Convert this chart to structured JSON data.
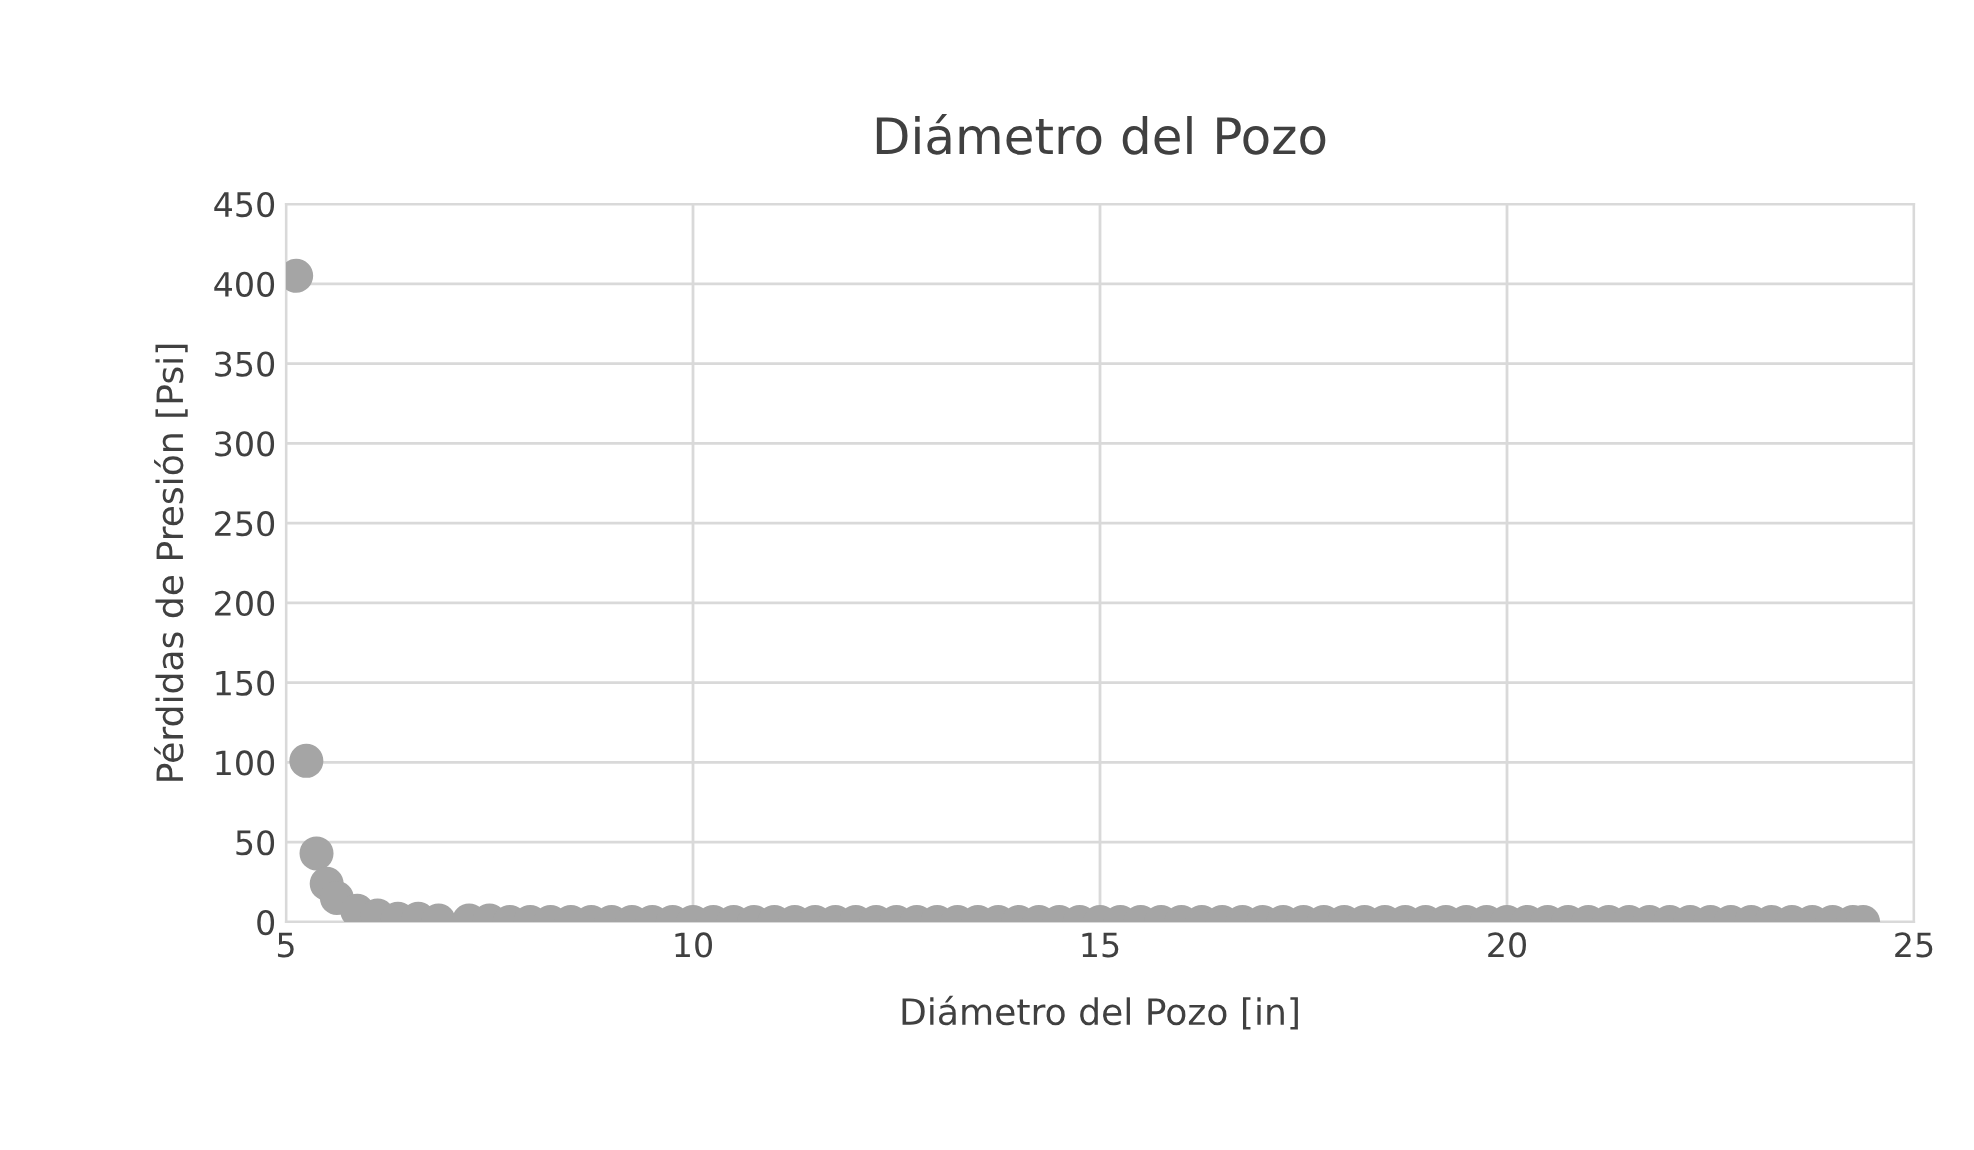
{
  "chart_data": {
    "type": "scatter",
    "title": "Diámetro del Pozo",
    "xlabel": "Diámetro del Pozo [in]",
    "ylabel": "Pérdidas de Presión [Psi]",
    "x": [
      5.125,
      5.25,
      5.375,
      5.5,
      5.625,
      5.875,
      6.125,
      6.375,
      6.625,
      6.875,
      7.25,
      7.5,
      7.75,
      8.0,
      8.25,
      8.5,
      8.75,
      9.0,
      9.25,
      9.5,
      9.75,
      10.0,
      10.25,
      10.5,
      10.75,
      11.0,
      11.25,
      11.5,
      11.75,
      12.0,
      12.25,
      12.5,
      12.75,
      13.0,
      13.25,
      13.5,
      13.75,
      14.0,
      14.25,
      14.5,
      14.75,
      15.0,
      15.25,
      15.5,
      15.75,
      16.0,
      16.25,
      16.5,
      16.75,
      17.0,
      17.25,
      17.5,
      17.75,
      18.0,
      18.25,
      18.5,
      18.75,
      19.0,
      19.25,
      19.5,
      19.75,
      20.0,
      20.25,
      20.5,
      20.75,
      21.0,
      21.25,
      21.5,
      21.75,
      22.0,
      22.25,
      22.5,
      22.75,
      23.0,
      23.25,
      23.5,
      23.75,
      24.0,
      24.25,
      24.375
    ],
    "series": [
      {
        "color": "#a5a5a5",
        "values": [
          405,
          101,
          43,
          24,
          15,
          7,
          4,
          2,
          2,
          1,
          1,
          1,
          0,
          0,
          0,
          0,
          0,
          0,
          0,
          0,
          0,
          0,
          0,
          0,
          0,
          0,
          0,
          0,
          0,
          0,
          0,
          0,
          0,
          0,
          0,
          0,
          0,
          0,
          0,
          0,
          0,
          0,
          0,
          0,
          0,
          0,
          0,
          0,
          0,
          0,
          0,
          0,
          0,
          0,
          0,
          0,
          0,
          0,
          0,
          0,
          0,
          0,
          0,
          0,
          0,
          0,
          0,
          0,
          0,
          0,
          0,
          0,
          0,
          0,
          0,
          0,
          0,
          0,
          0,
          0
        ]
      }
    ],
    "xlim": [
      5,
      25
    ],
    "xticks": [
      5,
      10,
      15,
      20,
      25
    ],
    "ylim": [
      0,
      450
    ],
    "yticks": [
      0,
      50,
      100,
      150,
      200,
      250,
      300,
      350,
      400,
      450
    ],
    "grid": true,
    "marker": "circle"
  }
}
